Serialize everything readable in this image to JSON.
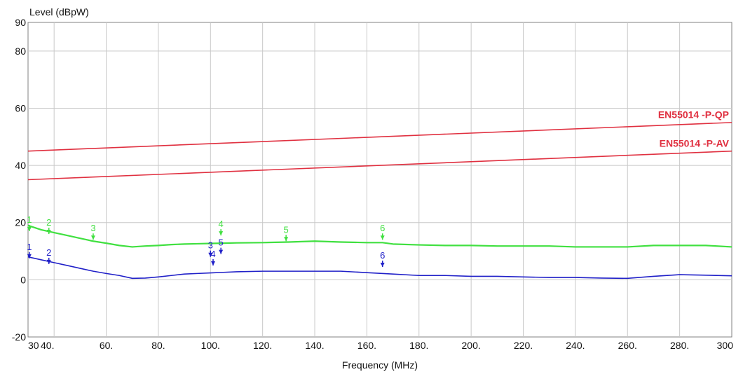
{
  "chart_data": {
    "type": "line",
    "ylabel": "Level (dBpW)",
    "xlabel": "Frequency (MHz)",
    "xlim": [
      30,
      300
    ],
    "ylim": [
      -20,
      90
    ],
    "x_tick_values": [
      30,
      40,
      60,
      80,
      100,
      120,
      140,
      160,
      180,
      200,
      220,
      240,
      260,
      280,
      300
    ],
    "x_tick_labels": [
      "30",
      "40.",
      "60.",
      "80.",
      "100.",
      "120.",
      "140.",
      "160.",
      "180.",
      "200.",
      "220.",
      "240.",
      "260.",
      "280.",
      "300"
    ],
    "y_tick_values": [
      -20,
      0,
      20,
      40,
      60,
      80,
      90
    ],
    "y_tick_labels": [
      "-20",
      "0",
      "20",
      "40",
      "60",
      "80",
      "90"
    ],
    "grid": true,
    "colors": {
      "limits": "#e03040",
      "qp_trace": "#40e040",
      "av_trace": "#2020c8",
      "grid": "#c8c8c8",
      "frame": "#808080"
    },
    "series": [
      {
        "name": "EN55014 -P-QP",
        "role": "limit",
        "x": [
          30,
          300
        ],
        "y": [
          45,
          55
        ]
      },
      {
        "name": "EN55014 -P-AV",
        "role": "limit",
        "x": [
          30,
          300
        ],
        "y": [
          35,
          45
        ]
      },
      {
        "role": "qp_trace",
        "x": [
          30,
          35,
          40,
          45,
          50,
          55,
          60,
          65,
          70,
          75,
          80,
          85,
          90,
          95,
          100,
          105,
          110,
          120,
          130,
          140,
          150,
          160,
          166,
          170,
          180,
          190,
          200,
          210,
          220,
          230,
          240,
          250,
          260,
          270,
          280,
          290,
          300
        ],
        "y": [
          19,
          17.5,
          16.5,
          15.5,
          14.5,
          13.5,
          12.8,
          12,
          11.5,
          11.8,
          12,
          12.3,
          12.5,
          12.6,
          12.7,
          12.8,
          12.9,
          13,
          13.2,
          13.5,
          13.2,
          13,
          13,
          12.5,
          12.2,
          12,
          12,
          11.8,
          11.8,
          11.8,
          11.5,
          11.5,
          11.5,
          12,
          12,
          12,
          11.5
        ]
      },
      {
        "role": "av_trace",
        "x": [
          30,
          35,
          40,
          45,
          50,
          55,
          60,
          65,
          70,
          75,
          80,
          85,
          90,
          95,
          100,
          105,
          110,
          120,
          130,
          140,
          150,
          160,
          170,
          180,
          190,
          200,
          210,
          220,
          230,
          240,
          250,
          260,
          270,
          280,
          290,
          300
        ],
        "y": [
          8,
          7,
          6,
          5,
          4,
          3,
          2.2,
          1.5,
          0.5,
          0.6,
          1,
          1.5,
          2,
          2.2,
          2.4,
          2.6,
          2.8,
          3,
          3,
          3,
          3,
          2.5,
          2,
          1.5,
          1.5,
          1.2,
          1.2,
          1,
          0.8,
          0.8,
          0.6,
          0.5,
          1.2,
          1.8,
          1.6,
          1.4
        ]
      }
    ],
    "markers": [
      {
        "label": "1",
        "x": 30.5,
        "y": 17,
        "trace": "qp_trace"
      },
      {
        "label": "2",
        "x": 38,
        "y": 16,
        "trace": "qp_trace"
      },
      {
        "label": "3",
        "x": 55,
        "y": 14,
        "trace": "qp_trace"
      },
      {
        "label": "4",
        "x": 104,
        "y": 15.5,
        "trace": "qp_trace"
      },
      {
        "label": "5",
        "x": 129,
        "y": 13.5,
        "trace": "qp_trace"
      },
      {
        "label": "6",
        "x": 166,
        "y": 14,
        "trace": "qp_trace"
      },
      {
        "label": "1",
        "x": 30.5,
        "y": 7.5,
        "trace": "av_trace"
      },
      {
        "label": "2",
        "x": 38,
        "y": 5.5,
        "trace": "av_trace"
      },
      {
        "label": "3",
        "x": 100,
        "y": 8,
        "trace": "av_trace"
      },
      {
        "label": "4",
        "x": 101,
        "y": 5,
        "trace": "av_trace"
      },
      {
        "label": "5",
        "x": 104,
        "y": 9,
        "trace": "av_trace"
      },
      {
        "label": "6",
        "x": 166,
        "y": 4.5,
        "trace": "av_trace"
      }
    ]
  }
}
